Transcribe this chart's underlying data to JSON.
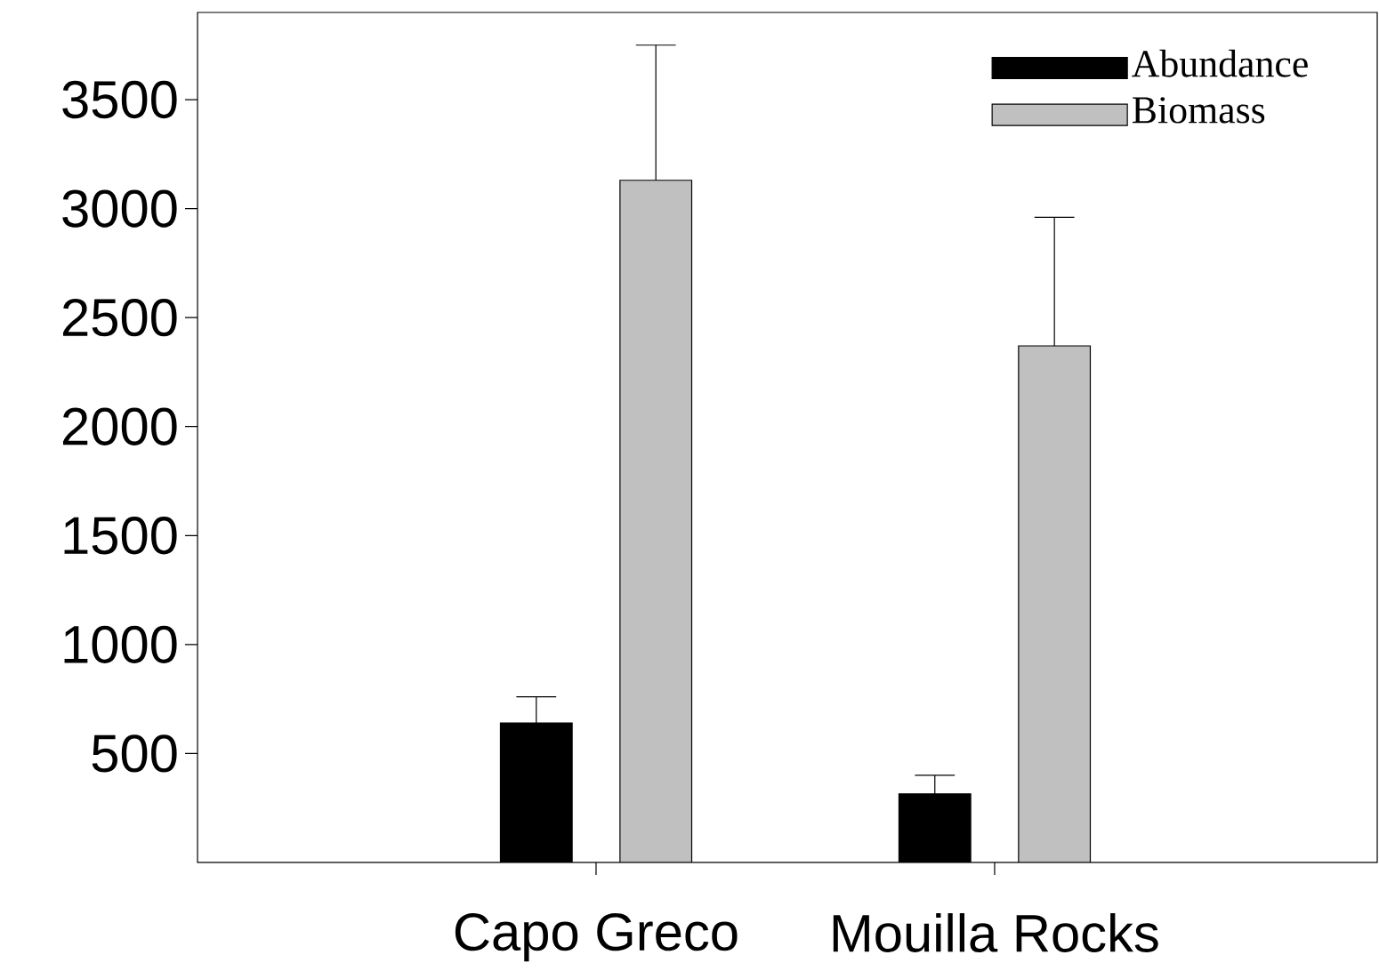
{
  "chart_data": {
    "type": "bar",
    "categories": [
      "Capo Greco",
      "Mouilla Rocks"
    ],
    "series": [
      {
        "name": "Abundance",
        "color": "#000000",
        "values": [
          640,
          315
        ],
        "errors": [
          [
            640,
            760
          ],
          [
            315,
            400
          ]
        ]
      },
      {
        "name": "Biomass",
        "color": "#c0c0c0",
        "values": [
          3130,
          2370
        ],
        "errors": [
          [
            3130,
            3750
          ],
          [
            2370,
            2960
          ]
        ]
      }
    ],
    "ylim": [
      0,
      3900
    ],
    "yticks": [
      500,
      1000,
      1500,
      2000,
      2500,
      3000,
      3500
    ],
    "grid": false,
    "legend": "top right"
  }
}
